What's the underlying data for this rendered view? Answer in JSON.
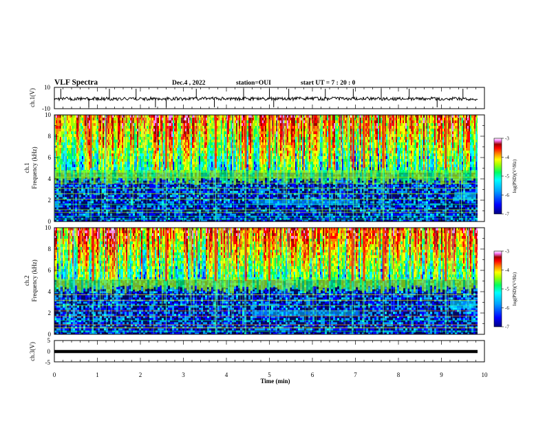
{
  "header": {
    "title": "VLF Spectra",
    "date": "Dec.4 , 2022",
    "station": "station=OUI",
    "start": "start UT = 7 : 20 : 0"
  },
  "labels": {
    "ch1_wave": "ch.1(V)",
    "ch1_spec": "ch.1",
    "ch2_spec": "ch.2",
    "freq": "Frequency (kHz)",
    "ch3": "ch.3(V)",
    "time": "Time (min)",
    "colorbar": "log(PSD)(V²/Hz)"
  },
  "colors": {
    "spectrogram_scale": [
      "#000080",
      "#0000ff",
      "#00a0ff",
      "#00ffff",
      "#00ff60",
      "#a0ff00",
      "#ffff00",
      "#ff8000",
      "#ff0000",
      "#a00000",
      "#ff80ff",
      "#ffffff"
    ],
    "background_band": "#0a1a8a",
    "trace": "#000000"
  },
  "chart_data": [
    {
      "type": "line",
      "name": "ch1-waveform",
      "ylabel": "ch.1(V)",
      "ylim": [
        -10,
        10
      ],
      "yticks": [
        "10",
        "-10"
      ],
      "xlim": [
        0,
        10
      ],
      "baseline": 0,
      "noise_amplitude": 2,
      "spikes_x": [
        0.15,
        0.8,
        1.28,
        1.9,
        2.35,
        2.6,
        3.3,
        3.72,
        4.4,
        5.0,
        5.1,
        5.45,
        6.3,
        6.95,
        7.6,
        8.25,
        8.9,
        9.5
      ]
    },
    {
      "type": "heatmap",
      "name": "ch1-spectrogram",
      "ylabel": "Frequency (kHz)",
      "xlim": [
        0,
        10
      ],
      "ylim": [
        0,
        10
      ],
      "yticks": [
        "0",
        "2",
        "4",
        "6",
        "8",
        "10"
      ],
      "colorbar": {
        "label": "log(PSD)(V²/Hz)",
        "range": [
          -7,
          -3
        ],
        "ticks": [
          "-3",
          "-4",
          "-5",
          "-6",
          "-7"
        ]
      },
      "upper_band_khz": [
        5,
        10
      ],
      "lower_cutoff_khz": 4.8,
      "hum_lines_khz": [
        0.25,
        0.5,
        0.85,
        1.1,
        1.6,
        2.1,
        2.6,
        3.1,
        3.6,
        4.15
      ],
      "emission_band": {
        "x": [
          4.6,
          7.1
        ],
        "freq_khz": 1.8
      },
      "late_emission": {
        "x": [
          9.3,
          9.8
        ],
        "freq_khz": 2.4
      },
      "strong_sferic_x": [
        0.85,
        2.6,
        3.75,
        4.45,
        5.0,
        6.4,
        6.95,
        7.2,
        7.65,
        9.1
      ]
    },
    {
      "type": "heatmap",
      "name": "ch2-spectrogram",
      "ylabel": "Frequency (kHz)",
      "xlim": [
        0,
        10
      ],
      "ylim": [
        0,
        10
      ],
      "yticks": [
        "0",
        "2",
        "4",
        "6",
        "8",
        "10"
      ],
      "colorbar": {
        "label": "log(PSD)(V²/Hz)",
        "range": [
          -7,
          -3
        ],
        "ticks": [
          "-3",
          "-4",
          "-5",
          "-6",
          "-7"
        ]
      },
      "upper_band_khz": [
        5,
        10
      ],
      "lower_cutoff_khz": 5.2,
      "hum_lines_khz": [
        0.3,
        0.6,
        0.9,
        1.3,
        1.7,
        2.2,
        2.7,
        3.2,
        3.7
      ],
      "emission_band": {
        "x": [
          4.6,
          7.1
        ],
        "freq_khz": 2.0
      },
      "late_emission": {
        "x": [
          9.2,
          9.8
        ],
        "freq_khz": 2.8
      },
      "strong_sferic_x": [
        0.9,
        2.6,
        3.75,
        4.45,
        5.0,
        6.4,
        6.93,
        7.2,
        7.65,
        9.1
      ]
    },
    {
      "type": "line",
      "name": "ch3-waveform",
      "ylabel": "ch.3(V)",
      "ylim": [
        -5,
        5
      ],
      "yticks": [
        "5",
        "0",
        "-5"
      ],
      "xlim": [
        0,
        10
      ],
      "value": 0,
      "xticks": [
        "0",
        "1",
        "2",
        "3",
        "4",
        "5",
        "6",
        "7",
        "8",
        "9",
        "10"
      ],
      "xlabel": "Time (min)"
    }
  ]
}
